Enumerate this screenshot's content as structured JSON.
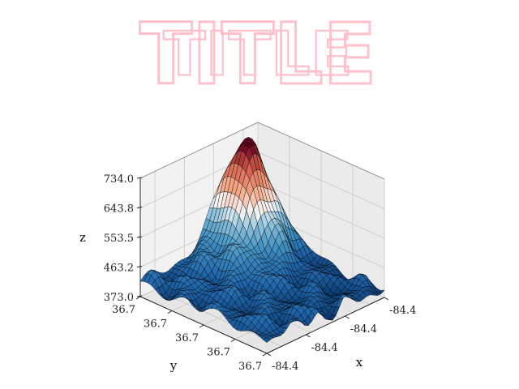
{
  "chart_data": {
    "type": "surface",
    "title": "TITLE",
    "title_color": "#ffc0cb",
    "colormap": "RdBu_r (blue low, red high)",
    "edge_color": "#000000",
    "xlabel": "x",
    "ylabel": "y",
    "zlabel": "z",
    "x_ticks": [
      "-84.4",
      "-84.4",
      "-84.4",
      "-84.4"
    ],
    "y_ticks": [
      "36.7",
      "36.7",
      "36.7",
      "36.7",
      "36.7"
    ],
    "z_ticks": [
      "373.0",
      "463.2",
      "553.5",
      "643.8",
      "734.0"
    ],
    "zlim": [
      373.0,
      734.0
    ],
    "grid": true,
    "legend": "none",
    "surface_note": "terrain-like elevation surface with a single dominant peak near the centre (~734) and a low undulating base (~400-480)"
  }
}
